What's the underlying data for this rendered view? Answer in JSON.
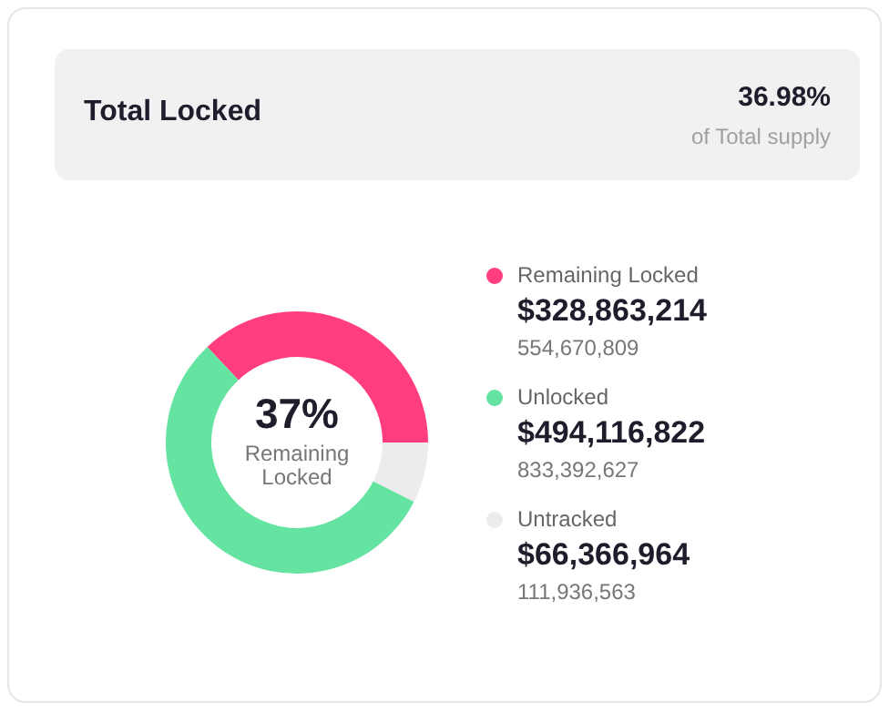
{
  "chart_data": {
    "type": "donut",
    "title": "Total Locked",
    "categories": [
      "Remaining Locked",
      "Unlocked",
      "Untracked"
    ],
    "values": [
      328863214,
      494116822,
      66366964
    ],
    "colors": [
      "#ff3d7f",
      "#64e3a1",
      "#ececec"
    ],
    "value_labels": [
      "$328,863,214",
      "$494,116,822",
      "$66,366,964"
    ],
    "annotations": [
      "36.98%",
      "of Total supply",
      "37%",
      "Remaining Locked",
      "554,670,809",
      "833,392,627",
      "111,936,563"
    ],
    "legend": "right"
  }
}
